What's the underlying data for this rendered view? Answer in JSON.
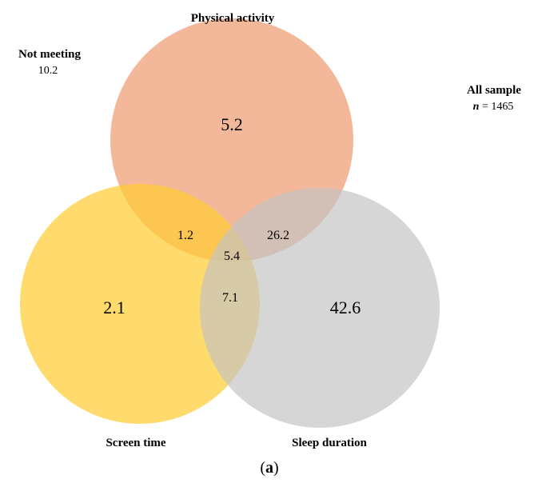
{
  "diagram": {
    "sets": {
      "physical_activity": {
        "name": "Physical activity",
        "color": "#F0A47E",
        "opacity": 0.78
      },
      "screen_time": {
        "name": "Screen time",
        "color": "#FFCC33",
        "opacity": 0.72
      },
      "sleep_duration": {
        "name": "Sleep duration",
        "color": "#C3C3C3",
        "opacity": 0.68
      }
    },
    "regions": {
      "pa_only": "5.2",
      "st_only": "2.1",
      "sd_only": "42.6",
      "pa_st": "1.2",
      "pa_sd": "26.2",
      "st_sd": "7.1",
      "all_three": "5.4"
    },
    "not_meeting": {
      "label": "Not meeting",
      "value": "10.2"
    },
    "sample": {
      "label": "All sample",
      "n_symbol": "n",
      "n_value": " = 1465"
    },
    "caption": {
      "open": "(",
      "letter": "a",
      "close": ")"
    }
  }
}
